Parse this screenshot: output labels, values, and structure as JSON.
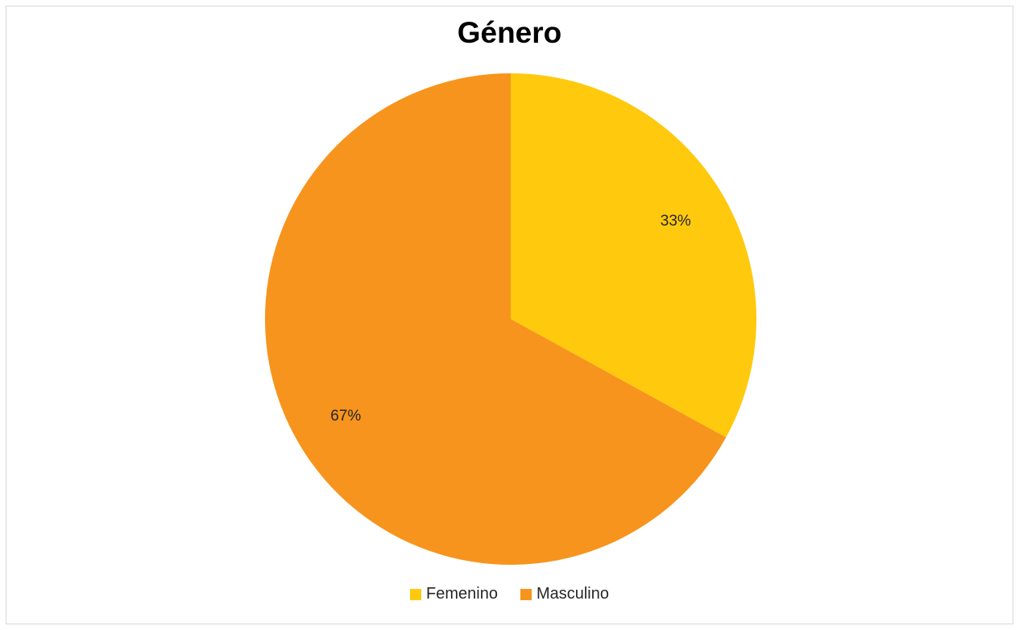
{
  "chart_data": {
    "type": "pie",
    "title": "Género",
    "categories": [
      "Femenino",
      "Masculino"
    ],
    "values": [
      33,
      67
    ],
    "data_labels": [
      "33%",
      "67%"
    ],
    "colors": [
      "#ffc90e",
      "#f7941d"
    ],
    "legend_position": "bottom",
    "start_angle": "top",
    "direction": "clockwise"
  }
}
